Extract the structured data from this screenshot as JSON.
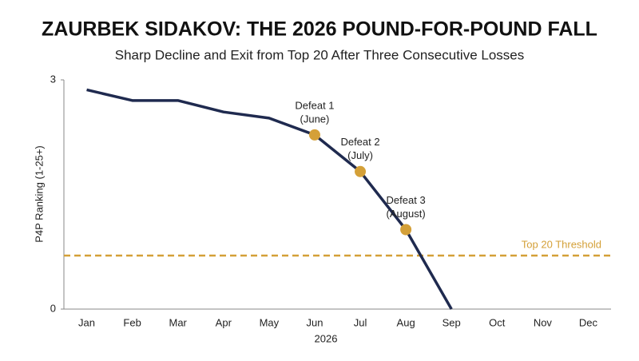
{
  "chart_data": {
    "type": "line",
    "title": "ZAURBEK SIDAKOV: THE 2026 POUND-FOR-POUND FALL",
    "subtitle": "Sharp Decline and Exit from Top 20 After Three Consecutive Losses",
    "x_label": "2026",
    "y_label": "P4P Ranking (1-25+)",
    "categories": [
      "Jan",
      "Feb",
      "Mar",
      "Apr",
      "May",
      "Jun",
      "Jul",
      "Aug",
      "Sep",
      "Oct",
      "Nov",
      "Dec"
    ],
    "series": [
      {
        "name": "P4P Ranking",
        "color": "#1f2a4f",
        "values": [
          2.87,
          2.73,
          2.73,
          2.58,
          2.5,
          2.28,
          1.8,
          1.04,
          0,
          null,
          null,
          null
        ]
      }
    ],
    "ylim": [
      0,
      3
    ],
    "yticks": [
      0,
      3
    ],
    "marker_color": "#d4a038",
    "annotations": [
      {
        "category": "Jun",
        "text": [
          "Defeat 1",
          "(June)"
        ]
      },
      {
        "category": "Jul",
        "text": [
          "Defeat 2",
          "(July)"
        ]
      },
      {
        "category": "Aug",
        "text": [
          "Defeat 3",
          "(August)"
        ]
      }
    ],
    "threshold": {
      "label": "Top 20 Threshold",
      "value": 0.7,
      "color": "#d4a038"
    },
    "grid": false
  }
}
